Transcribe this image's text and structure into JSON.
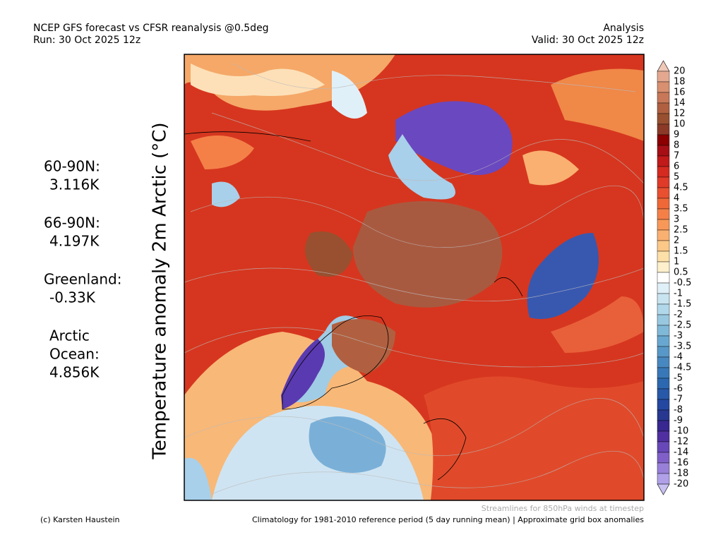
{
  "header": {
    "title": "NCEP GFS forecast vs CFSR reanalysis @0.5deg",
    "run": "Run: 30 Oct 2025 12z",
    "analysis": "Analysis",
    "valid": "Valid: 30 Oct 2025 12z"
  },
  "y_label": "Temperature anomaly 2m Arctic (°C)",
  "stats": [
    {
      "label": [
        "60-90N:"
      ],
      "value": "3.116K"
    },
    {
      "label": [
        "66-90N:"
      ],
      "value": "4.197K"
    },
    {
      "label": [
        "Greenland:"
      ],
      "value": "-0.33K"
    },
    {
      "label": [
        "Arctic",
        "Ocean:"
      ],
      "value": "4.856K"
    }
  ],
  "colorbar": {
    "labels": [
      20,
      18,
      16,
      14,
      12,
      10,
      9,
      8,
      7,
      6,
      5,
      4.5,
      4,
      3.5,
      3,
      2.5,
      2,
      1.5,
      1,
      0.5,
      -0.5,
      -1,
      -1.5,
      -2,
      -2.5,
      -3,
      -3.5,
      -4,
      -4.5,
      -5,
      -6,
      -7,
      -8,
      -9,
      -10,
      -12,
      -14,
      -16,
      -18,
      -20
    ],
    "colors": [
      "#f0c8b8",
      "#e4a890",
      "#d89070",
      "#c87858",
      "#b06040",
      "#985030",
      "#8c3a28",
      "#8b0000",
      "#a50f15",
      "#c01a1a",
      "#d42a20",
      "#e03a28",
      "#e85030",
      "#f06838",
      "#f48048",
      "#f89858",
      "#fab070",
      "#fcc888",
      "#fde0a8",
      "#fef0cc",
      "#ffffff",
      "#e0f0f8",
      "#c8e4f0",
      "#b0d8ea",
      "#98c8e0",
      "#80b8d8",
      "#68a8d0",
      "#5898c8",
      "#4888c0",
      "#3878b8",
      "#2c68b0",
      "#2858a8",
      "#2448a0",
      "#283890",
      "#382890",
      "#5030a0",
      "#6848b8",
      "#8060c8",
      "#9880d8",
      "#b0a0e8",
      "#c8c0f0"
    ]
  },
  "footer": {
    "credit": "(c) Karsten Haustein",
    "streamlines": "Streamlines for 850hPa winds at timestep",
    "climatology": "Climatology for 1981-2010 reference period (5 day running mean) | Approximate grid box anomalies"
  }
}
